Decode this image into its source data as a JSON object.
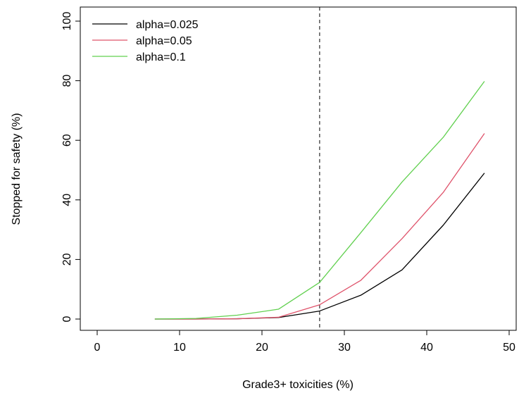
{
  "chart_data": {
    "type": "line",
    "title": "",
    "xlabel": "Grade3+ toxicities (%)",
    "ylabel": "Stopped for safety (%)",
    "xlim": [
      0,
      50
    ],
    "ylim": [
      0,
      100
    ],
    "x_ticks": [
      0,
      10,
      20,
      30,
      40,
      50
    ],
    "y_ticks": [
      0,
      20,
      40,
      60,
      80,
      100
    ],
    "x": [
      7,
      12,
      17,
      22,
      27,
      32,
      37,
      42,
      47
    ],
    "grid": false,
    "legend_position": "top-left",
    "vline": {
      "x": 27,
      "style": "dashed",
      "color": "#000000"
    },
    "series": [
      {
        "name": "alpha=0.025",
        "color": "#000000",
        "values": [
          0,
          0,
          0.1,
          0.5,
          2.7,
          8.0,
          16.5,
          31.5,
          49.0
        ]
      },
      {
        "name": "alpha=0.05",
        "color": "#DF536B",
        "values": [
          0,
          0,
          0.1,
          0.6,
          4.8,
          13.0,
          27.0,
          42.5,
          62.3
        ]
      },
      {
        "name": "alpha=0.1",
        "color": "#61D04F",
        "values": [
          0,
          0.2,
          1.3,
          3.3,
          12.3,
          29.0,
          46.0,
          61.0,
          79.8
        ]
      }
    ]
  }
}
